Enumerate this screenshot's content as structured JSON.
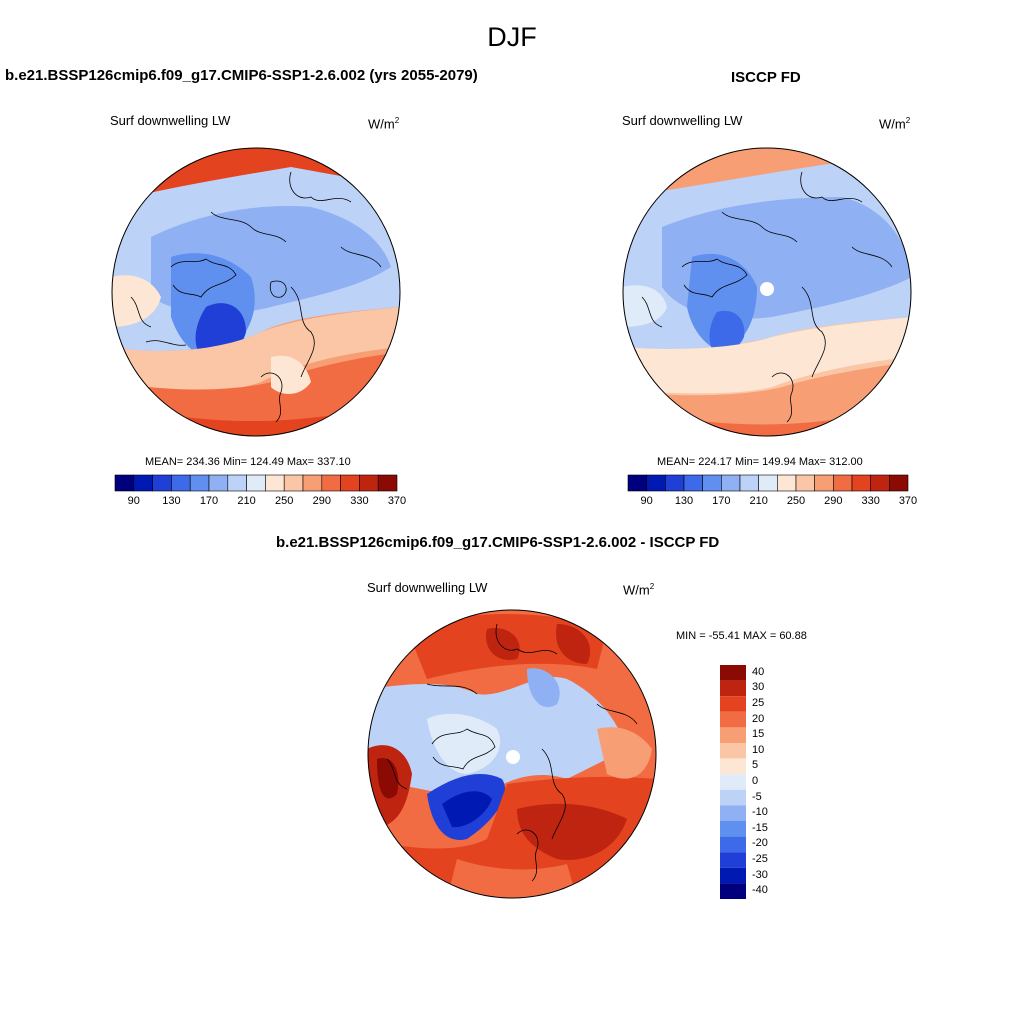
{
  "title": "DJF",
  "colors": {
    "abs_scale": [
      "#00007f",
      "#0019b2",
      "#1f3fd6",
      "#3d6ae8",
      "#6090ef",
      "#8fb1f3",
      "#bcd2f6",
      "#e0ebfa",
      "#fde6d3",
      "#fbc6a6",
      "#f79e75",
      "#f26c43",
      "#e3431e",
      "#bf2410",
      "#8c0a04"
    ],
    "diff_scale": [
      "#00007f",
      "#0019b2",
      "#1f3fd6",
      "#3d6ae8",
      "#6090ef",
      "#8fb1f3",
      "#bcd2f6",
      "#e0ebfa",
      "#fde6d3",
      "#fbc6a6",
      "#f79e75",
      "#f26c43",
      "#e3431e",
      "#bf2410",
      "#8c0a04"
    ]
  },
  "panels": {
    "model": {
      "title": "b.e21.BSSP126cmip6.f09_g17.CMIP6-SSP1-2.6.002 (yrs 2055-2079)",
      "var_label": "Surf downwelling LW",
      "units": "W/m",
      "units_sup": "2",
      "stats": "MEAN= 234.36  Min= 124.49  Max= 337.10"
    },
    "obs": {
      "title": "ISCCP FD",
      "var_label": "Surf downwelling LW",
      "units": "W/m",
      "units_sup": "2",
      "stats": "MEAN= 224.17  Min= 149.94  Max= 312.00"
    },
    "diff": {
      "title": "b.e21.BSSP126cmip6.f09_g17.CMIP6-SSP1-2.6.002 - ISCCP FD",
      "var_label": "Surf downwelling LW",
      "units": "W/m",
      "units_sup": "2",
      "stats": "MIN = -55.41 MAX =  60.88"
    }
  },
  "chart_data": [
    {
      "type": "heatmap",
      "title": "b.e21.BSSP126cmip6.f09_g17.CMIP6-SSP1-2.6.002 (yrs 2055-2079)",
      "subtitle": "Surf downwelling LW",
      "units": "W/m2",
      "projection": "north-polar-stereographic",
      "colorbar": {
        "orientation": "horizontal",
        "tick_labels": [
          "90",
          "130",
          "170",
          "210",
          "250",
          "290",
          "330",
          "370"
        ]
      },
      "stats": {
        "mean": 234.36,
        "min": 124.49,
        "max": 337.1
      }
    },
    {
      "type": "heatmap",
      "title": "ISCCP FD",
      "subtitle": "Surf downwelling LW",
      "units": "W/m2",
      "projection": "north-polar-stereographic",
      "colorbar": {
        "orientation": "horizontal",
        "tick_labels": [
          "90",
          "130",
          "170",
          "210",
          "250",
          "290",
          "330",
          "370"
        ]
      },
      "stats": {
        "mean": 224.17,
        "min": 149.94,
        "max": 312.0
      }
    },
    {
      "type": "heatmap",
      "title": "b.e21.BSSP126cmip6.f09_g17.CMIP6-SSP1-2.6.002 - ISCCP FD",
      "subtitle": "Surf downwelling LW",
      "units": "W/m2",
      "projection": "north-polar-stereographic",
      "colorbar": {
        "orientation": "vertical",
        "tick_labels": [
          "40",
          "30",
          "25",
          "20",
          "15",
          "10",
          "5",
          "0",
          "-5",
          "-10",
          "-15",
          "-20",
          "-25",
          "-30",
          "-40"
        ]
      },
      "stats": {
        "min": -55.41,
        "max": 60.88
      }
    }
  ]
}
